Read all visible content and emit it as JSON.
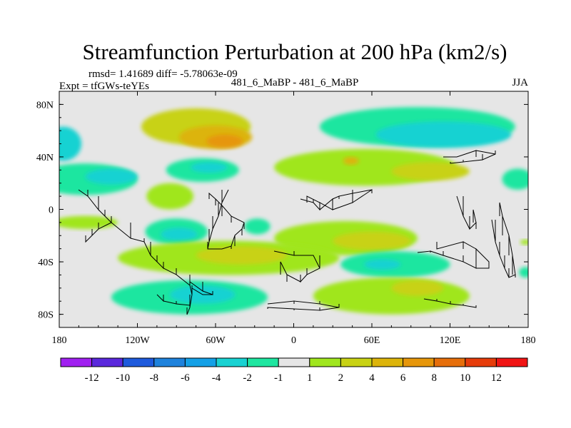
{
  "chart_data": {
    "type": "heatmap",
    "title": "Streamfunction Perturbation at 200 hPa (km2/s)",
    "stats_line": "rmsd= 1.41689 diff= -5.78063e-09",
    "experiment_label": "Expt = tfGWs-teYEs",
    "case_label": "481_6_MaBP - 481_6_MaBP",
    "season_label": "JJA",
    "xlim": [
      -180,
      180
    ],
    "ylim": [
      -90,
      90
    ],
    "x_ticks": [
      {
        "value": -180,
        "label": "180"
      },
      {
        "value": -120,
        "label": "120W"
      },
      {
        "value": -60,
        "label": "60W"
      },
      {
        "value": 0,
        "label": "0"
      },
      {
        "value": 60,
        "label": "60E"
      },
      {
        "value": 120,
        "label": "120E"
      },
      {
        "value": 180,
        "label": "180"
      }
    ],
    "y_ticks": [
      {
        "value": 80,
        "label": "80N"
      },
      {
        "value": 40,
        "label": "40N"
      },
      {
        "value": 0,
        "label": "0"
      },
      {
        "value": -40,
        "label": "40S"
      },
      {
        "value": -80,
        "label": "80S"
      }
    ],
    "levels": [
      -12,
      -10,
      -8,
      -6,
      -4,
      -2,
      -1,
      1,
      2,
      4,
      6,
      8,
      10,
      12
    ],
    "colorbar_labels": [
      "-12",
      "-10",
      "-8",
      "-6",
      "-4",
      "-2",
      "-1",
      "1",
      "2",
      "4",
      "6",
      "8",
      "10",
      "12"
    ],
    "colors": [
      "#a020f0",
      "#5a28dc",
      "#1e5adc",
      "#1e82dc",
      "#14a0e6",
      "#19d2d2",
      "#1ee6a0",
      "#e6e6e6",
      "#a0e61e",
      "#c8d214",
      "#dcb40a",
      "#e6960a",
      "#e66e0a",
      "#e63c0a",
      "#f01414"
    ],
    "blobs": [
      {
        "lon": -75,
        "lat": 63,
        "rlon": 42,
        "rlat": 14,
        "value": 2.5
      },
      {
        "lon": -60,
        "lat": 55,
        "rlon": 28,
        "rlat": 9,
        "value": 4.5
      },
      {
        "lon": -53,
        "lat": 52,
        "rlon": 14,
        "rlat": 5,
        "value": 6.5
      },
      {
        "lon": 95,
        "lat": 63,
        "rlon": 75,
        "rlat": 15,
        "value": -1.5
      },
      {
        "lon": 115,
        "lat": 57,
        "rlon": 52,
        "rlat": 10,
        "value": -2.5
      },
      {
        "lon": -177,
        "lat": 50,
        "rlon": 14,
        "rlat": 13,
        "value": -2.5
      },
      {
        "lon": -160,
        "lat": 23,
        "rlon": 40,
        "rlat": 12,
        "value": -1.5
      },
      {
        "lon": -140,
        "lat": 25,
        "rlon": 20,
        "rlat": 6,
        "value": -2.5
      },
      {
        "lon": -70,
        "lat": 30,
        "rlon": 28,
        "rlat": 9,
        "value": -1.5
      },
      {
        "lon": -65,
        "lat": 32,
        "rlon": 14,
        "rlat": 4,
        "value": -2.5
      },
      {
        "lon": -95,
        "lat": 10,
        "rlon": 18,
        "rlat": 10,
        "value": 1.5
      },
      {
        "lon": 55,
        "lat": 32,
        "rlon": 70,
        "rlat": 14,
        "value": 1.5
      },
      {
        "lon": 105,
        "lat": 29,
        "rlon": 30,
        "rlat": 7,
        "value": 3.0
      },
      {
        "lon": 44,
        "lat": 37,
        "rlon": 6,
        "rlat": 3,
        "value": 4.5
      },
      {
        "lon": 172,
        "lat": 23,
        "rlon": 12,
        "rlat": 8,
        "value": -1.5
      },
      {
        "lon": -160,
        "lat": -10,
        "rlon": 25,
        "rlat": 5,
        "value": 1.5
      },
      {
        "lon": -90,
        "lat": -17,
        "rlon": 24,
        "rlat": 10,
        "value": -1.5
      },
      {
        "lon": -88,
        "lat": -19,
        "rlon": 14,
        "rlat": 5,
        "value": -2.5
      },
      {
        "lon": -28,
        "lat": -13,
        "rlon": 10,
        "rlat": 6,
        "value": -1.5
      },
      {
        "lon": 40,
        "lat": -22,
        "rlon": 55,
        "rlat": 13,
        "value": 1.5
      },
      {
        "lon": 60,
        "lat": -24,
        "rlon": 30,
        "rlat": 7,
        "value": 2.5
      },
      {
        "lon": -50,
        "lat": -37,
        "rlon": 85,
        "rlat": 13,
        "value": 1.5
      },
      {
        "lon": -40,
        "lat": -35,
        "rlon": 35,
        "rlat": 7,
        "value": 2.5
      },
      {
        "lon": 78,
        "lat": -42,
        "rlon": 42,
        "rlat": 10,
        "value": -1.5
      },
      {
        "lon": 68,
        "lat": -42,
        "rlon": 14,
        "rlat": 4,
        "value": -2.5
      },
      {
        "lon": -80,
        "lat": -67,
        "rlon": 60,
        "rlat": 13,
        "value": -1.5
      },
      {
        "lon": -70,
        "lat": -65,
        "rlon": 25,
        "rlat": 7,
        "value": -2.5
      },
      {
        "lon": 75,
        "lat": -66,
        "rlon": 60,
        "rlat": 14,
        "value": 1.5
      },
      {
        "lon": 95,
        "lat": -60,
        "rlon": 20,
        "rlat": 6,
        "value": 3.0
      },
      {
        "lon": 178,
        "lat": -48,
        "rlon": 5,
        "rlat": 4,
        "value": -1.5
      },
      {
        "lon": 178,
        "lat": -25,
        "rlon": 4,
        "rlat": 2,
        "value": 1.5
      }
    ],
    "coastlines": [
      [
        [
          -165,
          15
        ],
        [
          -158,
          10
        ],
        [
          -150,
          0
        ],
        [
          -145,
          -5
        ],
        [
          -140,
          -10
        ],
        [
          -125,
          -22
        ],
        [
          -115,
          -25
        ],
        [
          -110,
          -35
        ],
        [
          -105,
          -40
        ],
        [
          -100,
          -45
        ],
        [
          -90,
          -50
        ],
        [
          -80,
          -58
        ],
        [
          -78,
          -65
        ],
        [
          -80,
          -75
        ],
        [
          -82,
          -80
        ]
      ],
      [
        [
          -50,
          15
        ],
        [
          -55,
          5
        ],
        [
          -58,
          -5
        ],
        [
          -62,
          -15
        ],
        [
          -65,
          -25
        ],
        [
          -66,
          -30
        ],
        [
          -55,
          -30
        ],
        [
          -48,
          -28
        ],
        [
          -45,
          -20
        ],
        [
          -40,
          -15
        ],
        [
          -38,
          -10
        ],
        [
          -48,
          -5
        ],
        [
          -55,
          3
        ],
        [
          -60,
          8
        ],
        [
          -65,
          12
        ]
      ],
      [
        [
          -15,
          -32
        ],
        [
          0,
          -35
        ],
        [
          15,
          -35
        ],
        [
          20,
          -45
        ],
        [
          10,
          -50
        ],
        [
          5,
          -55
        ],
        [
          -5,
          -50
        ],
        [
          -10,
          -40
        ]
      ],
      [
        [
          5,
          8
        ],
        [
          15,
          5
        ],
        [
          20,
          0
        ],
        [
          30,
          8
        ],
        [
          35,
          10
        ],
        [
          45,
          12
        ],
        [
          60,
          15
        ],
        [
          45,
          5
        ],
        [
          30,
          0
        ],
        [
          20,
          5
        ],
        [
          10,
          10
        ]
      ],
      [
        [
          95,
          -33
        ],
        [
          105,
          -32
        ],
        [
          115,
          -35
        ],
        [
          130,
          -40
        ],
        [
          140,
          -45
        ],
        [
          150,
          -45
        ],
        [
          150,
          -40
        ],
        [
          140,
          -30
        ],
        [
          130,
          -25
        ],
        [
          110,
          -30
        ]
      ],
      [
        [
          -105,
          -65
        ],
        [
          -100,
          -70
        ],
        [
          -90,
          -72
        ],
        [
          -80,
          -73
        ]
      ],
      [
        [
          -20,
          -72
        ],
        [
          0,
          -70
        ],
        [
          20,
          -72
        ],
        [
          35,
          -75
        ],
        [
          20,
          -77
        ],
        [
          0,
          -76
        ],
        [
          -20,
          -75
        ]
      ],
      [
        [
          100,
          -68
        ],
        [
          110,
          -70
        ],
        [
          120,
          -72
        ],
        [
          130,
          -73
        ],
        [
          140,
          -75
        ]
      ],
      [
        [
          152,
          -8
        ],
        [
          155,
          -25
        ],
        [
          158,
          -35
        ],
        [
          162,
          -45
        ],
        [
          165,
          -52
        ],
        [
          170,
          -50
        ],
        [
          168,
          -35
        ],
        [
          165,
          -20
        ],
        [
          160,
          -5
        ],
        [
          158,
          5
        ]
      ],
      [
        [
          -80,
          -55
        ],
        [
          -70,
          -62
        ],
        [
          -62,
          -65
        ],
        [
          -70,
          -65
        ],
        [
          -78,
          -60
        ]
      ],
      [
        [
          115,
          40
        ],
        [
          125,
          40
        ],
        [
          140,
          45
        ],
        [
          155,
          42
        ],
        [
          145,
          38
        ],
        [
          130,
          36
        ],
        [
          120,
          35
        ]
      ],
      [
        [
          125,
          10
        ],
        [
          130,
          -5
        ],
        [
          135,
          -15
        ],
        [
          140,
          -10
        ],
        [
          138,
          0
        ]
      ],
      [
        [
          -140,
          -10
        ],
        [
          -150,
          -15
        ],
        [
          -155,
          -20
        ],
        [
          -160,
          -25
        ]
      ]
    ],
    "colorbar_min": -14,
    "colorbar_max": 14
  }
}
